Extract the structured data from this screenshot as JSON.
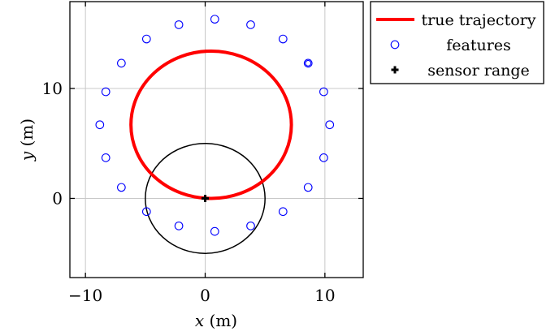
{
  "chart_data": {
    "type": "scatter",
    "xlabel": {
      "var": "x",
      "unit": " (m)"
    },
    "ylabel": {
      "var": "y",
      "unit": " (m)"
    },
    "xlim": [
      -11.3,
      13.2
    ],
    "ylim": [
      -7.2,
      17.9
    ],
    "xticks": [
      -10,
      0,
      10
    ],
    "yticks": [
      0,
      10
    ],
    "xtick_labels": [
      "−10",
      "0",
      "10"
    ],
    "ytick_labels": [
      "0",
      "10"
    ],
    "grid": true,
    "legend_position": "outside-right-top",
    "colors": {
      "trajectory": "#ff0000",
      "features": "#0000ff",
      "sensor": "#000000"
    },
    "series": [
      {
        "name": "true trajectory",
        "kind": "circle-line",
        "center": [
          0.5,
          6.7
        ],
        "radius": [
          6.7,
          6.7
        ]
      },
      {
        "name": "features",
        "kind": "markers",
        "points": [
          [
            0.8,
            16.3
          ],
          [
            3.8,
            15.8
          ],
          [
            6.5,
            14.5
          ],
          [
            8.6,
            12.3
          ],
          [
            9.9,
            9.7
          ],
          [
            10.4,
            6.7
          ],
          [
            9.9,
            3.7
          ],
          [
            8.6,
            1.0
          ],
          [
            6.5,
            -1.2
          ],
          [
            3.8,
            -2.5
          ],
          [
            0.8,
            -3.0
          ],
          [
            -2.2,
            -2.5
          ],
          [
            -4.9,
            -1.2
          ],
          [
            -7.0,
            1.0
          ],
          [
            -8.3,
            3.7
          ],
          [
            -8.8,
            6.7
          ],
          [
            -8.3,
            9.7
          ],
          [
            -7.0,
            12.3
          ],
          [
            -4.9,
            14.5
          ],
          [
            -2.2,
            15.8
          ]
        ]
      },
      {
        "name": "sensor range",
        "kind": "circle-range",
        "center": [
          0.0,
          0.0
        ],
        "radius": [
          5.0,
          5.0
        ]
      }
    ]
  }
}
